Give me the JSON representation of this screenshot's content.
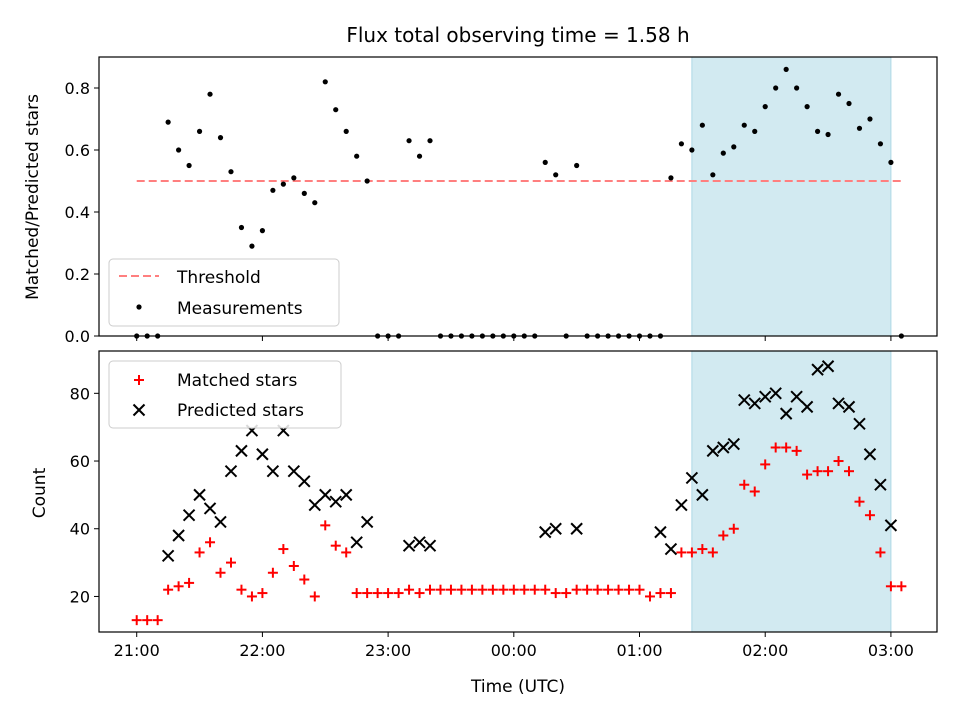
{
  "chart_data": {
    "type": "scatter",
    "title": "Flux total observing time = 1.58 h",
    "xlabel": "Time (UTC)",
    "x_ticks": [
      {
        "t": 0,
        "label": "21:00"
      },
      {
        "t": 60,
        "label": "22:00"
      },
      {
        "t": 120,
        "label": "23:00"
      },
      {
        "t": 180,
        "label": "00:00"
      },
      {
        "t": 240,
        "label": "01:00"
      },
      {
        "t": 300,
        "label": "02:00"
      },
      {
        "t": 360,
        "label": "03:00"
      }
    ],
    "xlim": [
      -18,
      382
    ],
    "highlight_span": {
      "x_start": 265,
      "x_end": 360,
      "color": "#add8e6"
    },
    "top": {
      "ylabel": "Matched/Predicted stars",
      "ylim": [
        0,
        0.9
      ],
      "y_ticks": [
        "0.0",
        "0.2",
        "0.4",
        "0.6",
        "0.8"
      ],
      "y_tick_values": [
        0,
        0.2,
        0.4,
        0.6,
        0.8
      ],
      "legend": {
        "placement": "lower-left",
        "entries": [
          "Threshold",
          "Measurements"
        ]
      },
      "threshold": {
        "value": 0.5,
        "x_start": 0,
        "x_end": 365,
        "color": "#ff7f7f"
      },
      "measurements": {
        "color": "#000000",
        "x": [
          0,
          5,
          10,
          15,
          20,
          25,
          30,
          35,
          40,
          45,
          50,
          55,
          60,
          65,
          70,
          75,
          80,
          85,
          90,
          95,
          100,
          105,
          110,
          115,
          120,
          125,
          130,
          135,
          140,
          145,
          150,
          155,
          160,
          165,
          170,
          175,
          180,
          185,
          190,
          195,
          200,
          205,
          210,
          215,
          220,
          225,
          230,
          235,
          240,
          245,
          250,
          255,
          260,
          265,
          270,
          275,
          280,
          285,
          290,
          295,
          300,
          305,
          310,
          315,
          320,
          325,
          330,
          335,
          340,
          345,
          350,
          355,
          360,
          365
        ],
        "y": [
          0,
          0,
          0,
          0.69,
          0.6,
          0.55,
          0.66,
          0.78,
          0.64,
          0.53,
          0.35,
          0.29,
          0.34,
          0.47,
          0.49,
          0.51,
          0.46,
          0.43,
          0.82,
          0.73,
          0.66,
          0.58,
          0.5,
          0,
          0,
          0,
          0.63,
          0.58,
          0.63,
          0,
          0,
          0,
          0,
          0,
          0,
          0,
          0,
          0,
          0,
          0.56,
          0.52,
          0,
          0.55,
          0,
          0,
          0,
          0,
          0,
          0,
          0,
          0,
          0.51,
          0.62,
          0.6,
          0.68,
          0.52,
          0.59,
          0.61,
          0.68,
          0.66,
          0.74,
          0.8,
          0.86,
          0.8,
          0.74,
          0.66,
          0.65,
          0.78,
          0.75,
          0.67,
          0.7,
          0.62,
          0.56,
          0
        ]
      }
    },
    "bottom": {
      "ylabel": "Count",
      "ylim": [
        9.5,
        92.5
      ],
      "y_ticks": [
        "20",
        "40",
        "60",
        "80"
      ],
      "y_tick_values": [
        20,
        40,
        60,
        80
      ],
      "legend": {
        "placement": "upper-left",
        "entries": [
          "Matched stars",
          "Predicted stars"
        ]
      },
      "series": [
        {
          "name": "Matched stars",
          "marker": "plus",
          "color": "#ff0000",
          "x": [
            0,
            5,
            10,
            15,
            20,
            25,
            30,
            35,
            40,
            45,
            50,
            55,
            60,
            65,
            70,
            75,
            80,
            85,
            90,
            95,
            100,
            105,
            110,
            115,
            120,
            125,
            130,
            135,
            140,
            145,
            150,
            155,
            160,
            165,
            170,
            175,
            180,
            185,
            190,
            195,
            200,
            205,
            210,
            215,
            220,
            225,
            230,
            235,
            240,
            245,
            250,
            255,
            260,
            265,
            270,
            275,
            280,
            285,
            290,
            295,
            300,
            305,
            310,
            315,
            320,
            325,
            330,
            335,
            340,
            345,
            350,
            355,
            360,
            365
          ],
          "y": [
            13,
            13,
            13,
            22,
            23,
            24,
            33,
            36,
            27,
            30,
            22,
            20,
            21,
            27,
            34,
            29,
            25,
            20,
            41,
            35,
            33,
            21,
            21,
            21,
            21,
            21,
            22,
            21,
            22,
            22,
            22,
            22,
            22,
            22,
            22,
            22,
            22,
            22,
            22,
            22,
            21,
            21,
            22,
            22,
            22,
            22,
            22,
            22,
            22,
            20,
            21,
            21,
            33,
            33,
            34,
            33,
            38,
            40,
            53,
            51,
            59,
            64,
            64,
            63,
            56,
            57,
            57,
            60,
            57,
            48,
            44,
            33,
            23,
            23
          ]
        },
        {
          "name": "Predicted stars",
          "marker": "x",
          "color": "#000000",
          "x": [
            15,
            20,
            25,
            30,
            35,
            40,
            45,
            50,
            55,
            60,
            65,
            70,
            75,
            80,
            85,
            90,
            95,
            100,
            105,
            110,
            130,
            135,
            140,
            195,
            200,
            210,
            250,
            255,
            260,
            265,
            270,
            275,
            280,
            285,
            290,
            295,
            300,
            305,
            310,
            315,
            320,
            325,
            330,
            335,
            340,
            345,
            350,
            355,
            360
          ],
          "y": [
            32,
            38,
            44,
            50,
            46,
            42,
            57,
            63,
            69,
            62,
            57,
            69,
            57,
            54,
            47,
            50,
            48,
            50,
            36,
            42,
            35,
            36,
            35,
            39,
            40,
            40,
            39,
            34,
            47,
            55,
            50,
            63,
            64,
            65,
            78,
            77,
            79,
            80,
            74,
            79,
            76,
            87,
            88,
            77,
            76,
            71,
            62,
            53,
            41
          ]
        }
      ]
    }
  }
}
